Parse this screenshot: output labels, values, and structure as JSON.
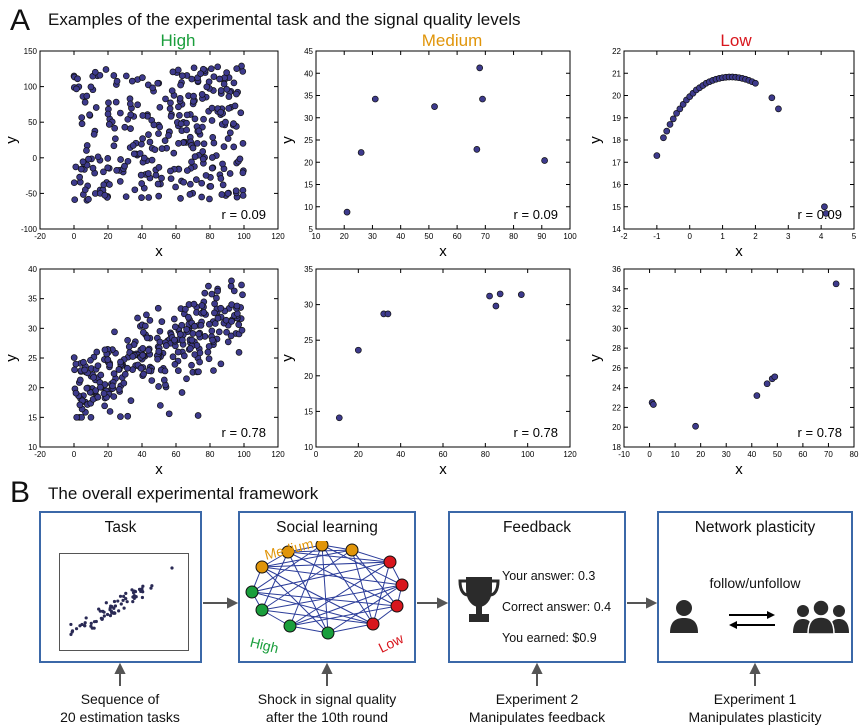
{
  "panel_a": {
    "letter": "A",
    "title": "Examples of the experimental task and the signal quality levels",
    "columns": [
      {
        "label": "High",
        "color": "#1a9e3c"
      },
      {
        "label": "Medium",
        "color": "#e0950a"
      },
      {
        "label": "Low",
        "color": "#d8161d"
      }
    ]
  },
  "panel_b": {
    "letter": "B",
    "title": "The overall experimental framework",
    "boxes": {
      "task": {
        "title": "Task"
      },
      "social": {
        "title": "Social learning",
        "labels": {
          "medium": "Medium",
          "high": "High",
          "low": "Low"
        }
      },
      "feedback": {
        "title": "Feedback",
        "your_answer": "Your answer: 0.3",
        "correct_answer": "Correct answer: 0.4",
        "earned": "You earned: $0.9"
      },
      "network": {
        "title": "Network plasticity",
        "action": "follow/unfollow"
      }
    },
    "captions": [
      {
        "line1": "Sequence of",
        "line2": "20 estimation tasks"
      },
      {
        "line1": "Shock in signal quality",
        "line2": "after the 10th round"
      },
      {
        "line1": "Experiment 2",
        "line2": "Manipulates feedback"
      },
      {
        "line1": "Experiment 1",
        "line2": "Manipulates plasticity"
      }
    ]
  },
  "chart_data": [
    {
      "type": "scatter",
      "name": "high-r009",
      "xlabel": "x",
      "ylabel": "y",
      "annotation": "r = 0.09",
      "xlim": [
        -20,
        120
      ],
      "ylim": [
        -100,
        150
      ],
      "xticks": [
        -20,
        0,
        20,
        40,
        60,
        80,
        100,
        120
      ],
      "yticks": [
        -100,
        -50,
        0,
        50,
        100,
        150
      ],
      "points": "cloud",
      "cloud": {
        "n": 320,
        "xmin": 0,
        "xmax": 100,
        "ymin": -60,
        "ymax": 130,
        "slope": 0,
        "noise": 0
      },
      "x": [],
      "y": []
    },
    {
      "type": "scatter",
      "name": "medium-r009",
      "xlabel": "x",
      "ylabel": "y",
      "annotation": "r = 0.09",
      "xlim": [
        10,
        100
      ],
      "ylim": [
        5,
        45
      ],
      "xticks": [
        10,
        20,
        30,
        40,
        50,
        60,
        70,
        80,
        90,
        100
      ],
      "yticks": [
        5,
        10,
        15,
        20,
        25,
        30,
        35,
        40,
        45
      ],
      "x": [
        21,
        26,
        31,
        52,
        67,
        68,
        69,
        91
      ],
      "y": [
        8.8,
        22.2,
        34.2,
        32.5,
        22.9,
        41.2,
        34.2,
        20.4
      ]
    },
    {
      "type": "scatter",
      "name": "low-r009",
      "xlabel": "x",
      "ylabel": "y",
      "annotation": "r = 0.09",
      "xlim": [
        -2,
        5
      ],
      "ylim": [
        14,
        22
      ],
      "xticks": [
        -2,
        -1,
        0,
        1,
        2,
        3,
        4,
        5
      ],
      "yticks": [
        14,
        15,
        16,
        17,
        18,
        19,
        20,
        21,
        22
      ],
      "points": "curve",
      "curve": {
        "xs": [
          -1.0,
          -0.8,
          -0.7,
          -0.6,
          -0.5,
          -0.4,
          -0.3,
          -0.2,
          -0.1,
          0.0,
          0.1,
          0.2,
          0.3,
          0.4,
          0.5,
          0.6,
          0.7,
          0.8,
          0.9,
          1.0,
          1.1,
          1.2,
          1.3,
          1.4,
          1.5,
          1.6,
          1.7,
          1.8,
          1.9,
          2.0,
          2.5,
          2.7,
          4.1,
          4.15
        ],
        "ys": [
          17.3,
          18.1,
          18.4,
          18.7,
          18.95,
          19.2,
          19.4,
          19.6,
          19.8,
          19.95,
          20.1,
          20.25,
          20.35,
          20.45,
          20.55,
          20.62,
          20.68,
          20.73,
          20.77,
          20.8,
          20.82,
          20.83,
          20.83,
          20.82,
          20.8,
          20.77,
          20.73,
          20.68,
          20.62,
          20.55,
          19.9,
          19.4,
          15.0,
          14.7
        ]
      },
      "x": [],
      "y": []
    },
    {
      "type": "scatter",
      "name": "high-r078",
      "xlabel": "x",
      "ylabel": "y",
      "annotation": "r = 0.78",
      "xlim": [
        -20,
        120
      ],
      "ylim": [
        10,
        40
      ],
      "xticks": [
        -20,
        0,
        20,
        40,
        60,
        80,
        100,
        120
      ],
      "yticks": [
        10,
        15,
        20,
        25,
        30,
        35,
        40
      ],
      "points": "cloud",
      "cloud": {
        "n": 320,
        "xmin": 0,
        "xmax": 100,
        "ymin": 15,
        "ymax": 38,
        "slope": 0.13,
        "intercept": 19.5,
        "noise": 3.2
      },
      "x": [],
      "y": []
    },
    {
      "type": "scatter",
      "name": "medium-r078",
      "xlabel": "x",
      "ylabel": "y",
      "annotation": "r = 0.78",
      "xlim": [
        0,
        120
      ],
      "ylim": [
        10,
        35
      ],
      "xticks": [
        0,
        20,
        40,
        60,
        80,
        100,
        120
      ],
      "yticks": [
        10,
        15,
        20,
        25,
        30,
        35
      ],
      "x": [
        11,
        20,
        32,
        34,
        82,
        85,
        87,
        97
      ],
      "y": [
        14.1,
        23.6,
        28.7,
        28.7,
        31.2,
        29.8,
        31.5,
        31.4
      ]
    },
    {
      "type": "scatter",
      "name": "low-r078",
      "xlabel": "x",
      "ylabel": "y",
      "annotation": "r = 0.78",
      "xlim": [
        -10,
        80
      ],
      "ylim": [
        18,
        36
      ],
      "xticks": [
        -10,
        0,
        10,
        20,
        30,
        40,
        50,
        60,
        70,
        80
      ],
      "yticks": [
        18,
        20,
        22,
        24,
        26,
        28,
        30,
        32,
        34,
        36
      ],
      "x": [
        1,
        1.5,
        18,
        42,
        46,
        48,
        49,
        73
      ],
      "y": [
        22.5,
        22.3,
        20.1,
        23.2,
        24.4,
        24.9,
        25.1,
        34.5
      ]
    }
  ]
}
